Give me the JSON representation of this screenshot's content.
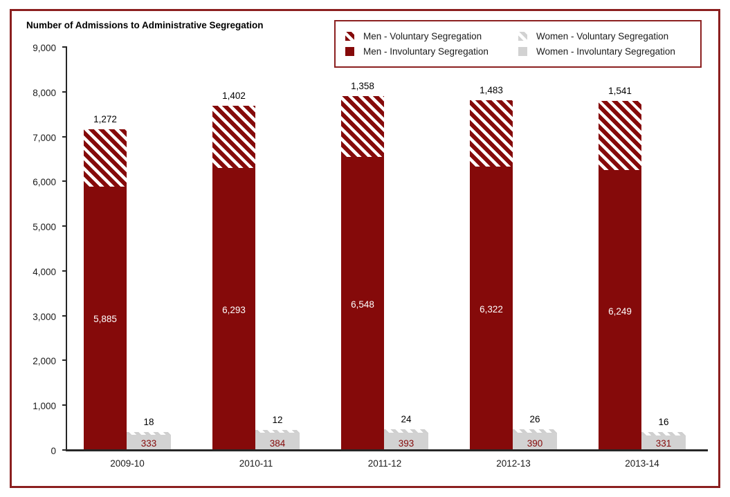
{
  "title": "Number of Admissions to Administrative Segregation",
  "legend": {
    "items": [
      {
        "key": "men-voluntary",
        "label": "Men - Voluntary Segregation"
      },
      {
        "key": "women-voluntary",
        "label": "Women - Voluntary Segregation"
      },
      {
        "key": "men-involuntary",
        "label": "Men - Involuntary Segregation"
      },
      {
        "key": "women-involuntary",
        "label": "Women - Involuntary Segregation"
      }
    ]
  },
  "colors": {
    "dark_red": "#850A0A",
    "gray": "#D2D2D2",
    "frame": "#8B1F1F",
    "axis": "#262626"
  },
  "chart_data": {
    "type": "bar",
    "stacked": true,
    "title": "Number of Admissions to Administrative Segregation",
    "categories": [
      "2009-10",
      "2010-11",
      "2011-12",
      "2012-13",
      "2013-14"
    ],
    "series": [
      {
        "name": "Men - Involuntary Segregation",
        "values": [
          5885,
          6293,
          6548,
          6322,
          6249
        ],
        "style": "solid-dark-red",
        "value_label_style": "inside-white"
      },
      {
        "name": "Men - Voluntary Segregation",
        "values": [
          1272,
          1402,
          1358,
          1483,
          1541
        ],
        "style": "dark-red-stripes",
        "value_label_style": "above-black"
      },
      {
        "name": "Women - Involuntary Segregation",
        "values": [
          333,
          384,
          393,
          390,
          331
        ],
        "style": "solid-gray",
        "value_label_style": "inside-dark-red"
      },
      {
        "name": "Women - Voluntary Segregation",
        "values": [
          18,
          12,
          24,
          26,
          16
        ],
        "style": "gray-stripes",
        "value_label_style": "above-black"
      }
    ],
    "ylim": [
      0,
      9000
    ],
    "ytick_labels": [
      "0",
      "1,000",
      "2,000",
      "3,000",
      "4,000",
      "5,000",
      "6,000",
      "7,000",
      "8,000",
      "9,000"
    ],
    "grid": false,
    "legend_position": "top-right"
  }
}
